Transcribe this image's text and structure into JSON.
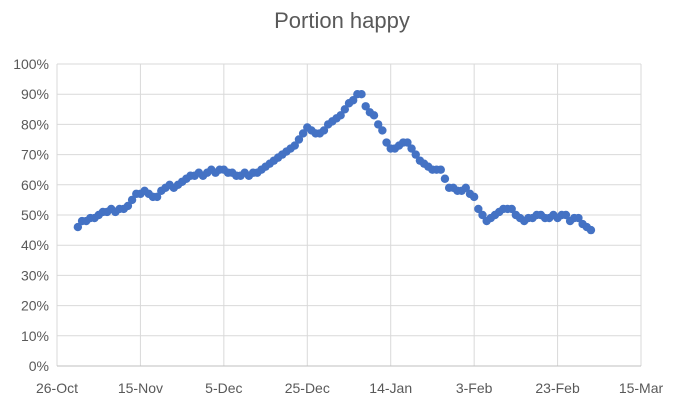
{
  "chart_data": {
    "type": "scatter",
    "title": "Portion happy",
    "xlabel": "",
    "ylabel": "",
    "x_ticks": [
      "26-Oct",
      "15-Nov",
      "5-Dec",
      "25-Dec",
      "14-Jan",
      "3-Feb",
      "23-Feb",
      "15-Mar"
    ],
    "y_ticks": [
      "0%",
      "10%",
      "20%",
      "30%",
      "40%",
      "50%",
      "60%",
      "70%",
      "80%",
      "90%",
      "100%"
    ],
    "ylim": [
      0,
      1
    ],
    "xlim": [
      "2020-10-26",
      "2021-03-15"
    ],
    "grid": true,
    "marker_color": "#4472C4",
    "series": [
      {
        "x": [
          "2020-10-31",
          "2020-11-01",
          "2020-11-02",
          "2020-11-03",
          "2020-11-04",
          "2020-11-05",
          "2020-11-06",
          "2020-11-07",
          "2020-11-08",
          "2020-11-09",
          "2020-11-10",
          "2020-11-11",
          "2020-11-12",
          "2020-11-13",
          "2020-11-14",
          "2020-11-15",
          "2020-11-16",
          "2020-11-17",
          "2020-11-18",
          "2020-11-19",
          "2020-11-20",
          "2020-11-21",
          "2020-11-22",
          "2020-11-23",
          "2020-11-24",
          "2020-11-25",
          "2020-11-26",
          "2020-11-27",
          "2020-11-28",
          "2020-11-29",
          "2020-11-30",
          "2020-12-01",
          "2020-12-02",
          "2020-12-03",
          "2020-12-04",
          "2020-12-05",
          "2020-12-06",
          "2020-12-07",
          "2020-12-08",
          "2020-12-09",
          "2020-12-10",
          "2020-12-11",
          "2020-12-12",
          "2020-12-13",
          "2020-12-14",
          "2020-12-15",
          "2020-12-16",
          "2020-12-17",
          "2020-12-18",
          "2020-12-19",
          "2020-12-20",
          "2020-12-21",
          "2020-12-22",
          "2020-12-23",
          "2020-12-24",
          "2020-12-25",
          "2020-12-26",
          "2020-12-27",
          "2020-12-28",
          "2020-12-29",
          "2020-12-30",
          "2020-12-31",
          "2021-01-01",
          "2021-01-02",
          "2021-01-03",
          "2021-01-04",
          "2021-01-05",
          "2021-01-06",
          "2021-01-07",
          "2021-01-08",
          "2021-01-09",
          "2021-01-10",
          "2021-01-11",
          "2021-01-12",
          "2021-01-13",
          "2021-01-14",
          "2021-01-15",
          "2021-01-16",
          "2021-01-17",
          "2021-01-18",
          "2021-01-19",
          "2021-01-20",
          "2021-01-21",
          "2021-01-22",
          "2021-01-23",
          "2021-01-24",
          "2021-01-25",
          "2021-01-26",
          "2021-01-27",
          "2021-01-28",
          "2021-01-29",
          "2021-01-30",
          "2021-01-31",
          "2021-02-01",
          "2021-02-02",
          "2021-02-03",
          "2021-02-04",
          "2021-02-05",
          "2021-02-06",
          "2021-02-07",
          "2021-02-08",
          "2021-02-09",
          "2021-02-10",
          "2021-02-11",
          "2021-02-12",
          "2021-02-13",
          "2021-02-14",
          "2021-02-15",
          "2021-02-16",
          "2021-02-17",
          "2021-02-18",
          "2021-02-19",
          "2021-02-20",
          "2021-02-21",
          "2021-02-22",
          "2021-02-23",
          "2021-02-24",
          "2021-02-25",
          "2021-02-26",
          "2021-02-27",
          "2021-02-28",
          "2021-03-01",
          "2021-03-02",
          "2021-03-03"
        ],
        "y": [
          0.46,
          0.48,
          0.48,
          0.49,
          0.49,
          0.5,
          0.51,
          0.51,
          0.52,
          0.51,
          0.52,
          0.52,
          0.53,
          0.55,
          0.57,
          0.57,
          0.58,
          0.57,
          0.56,
          0.56,
          0.58,
          0.59,
          0.6,
          0.59,
          0.6,
          0.61,
          0.62,
          0.63,
          0.63,
          0.64,
          0.63,
          0.64,
          0.65,
          0.64,
          0.65,
          0.65,
          0.64,
          0.64,
          0.63,
          0.63,
          0.64,
          0.63,
          0.64,
          0.64,
          0.65,
          0.66,
          0.67,
          0.68,
          0.69,
          0.7,
          0.71,
          0.72,
          0.73,
          0.75,
          0.77,
          0.79,
          0.78,
          0.77,
          0.77,
          0.78,
          0.8,
          0.81,
          0.82,
          0.83,
          0.85,
          0.87,
          0.88,
          0.9,
          0.9,
          0.86,
          0.84,
          0.83,
          0.8,
          0.78,
          0.74,
          0.72,
          0.72,
          0.73,
          0.74,
          0.74,
          0.72,
          0.7,
          0.68,
          0.67,
          0.66,
          0.65,
          0.65,
          0.65,
          0.62,
          0.59,
          0.59,
          0.58,
          0.58,
          0.59,
          0.57,
          0.56,
          0.52,
          0.5,
          0.48,
          0.49,
          0.5,
          0.51,
          0.52,
          0.52,
          0.52,
          0.5,
          0.49,
          0.48,
          0.49,
          0.49,
          0.5,
          0.5,
          0.49,
          0.49,
          0.5,
          0.49,
          0.5,
          0.5,
          0.48,
          0.49,
          0.49,
          0.47,
          0.46,
          0.45
        ]
      }
    ]
  }
}
